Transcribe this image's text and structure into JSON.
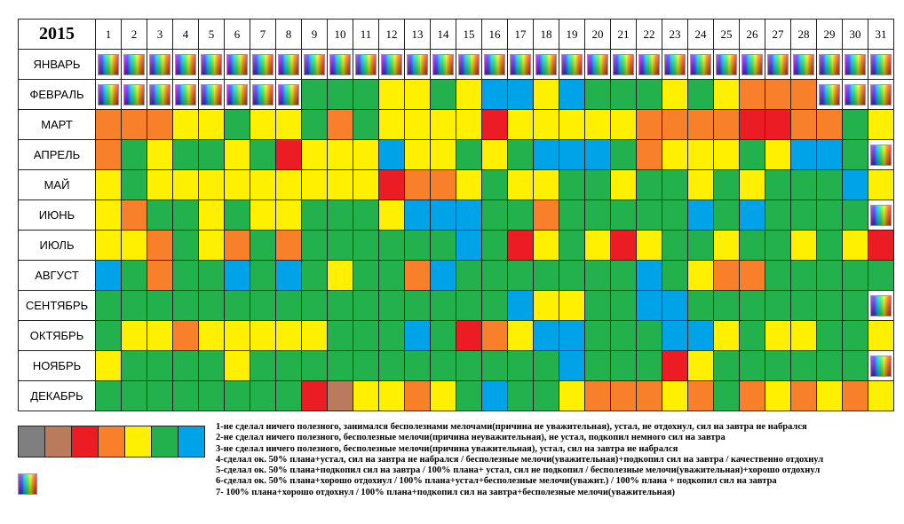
{
  "header": {
    "year": "2015",
    "days": [
      "1",
      "2",
      "3",
      "4",
      "5",
      "6",
      "7",
      "8",
      "9",
      "10",
      "11",
      "12",
      "13",
      "14",
      "15",
      "16",
      "17",
      "18",
      "19",
      "20",
      "21",
      "22",
      "23",
      "24",
      "25",
      "26",
      "27",
      "28",
      "29",
      "30",
      "31"
    ]
  },
  "rows": [
    {
      "month": "ЯНВАРЬ",
      "cells": [
        8,
        8,
        8,
        8,
        8,
        8,
        8,
        8,
        8,
        8,
        8,
        8,
        8,
        8,
        8,
        8,
        8,
        8,
        8,
        8,
        8,
        8,
        8,
        8,
        8,
        8,
        8,
        8,
        8,
        8,
        8
      ]
    },
    {
      "month": "ФЕВРАЛЬ",
      "cells": [
        8,
        8,
        8,
        8,
        8,
        8,
        8,
        8,
        6,
        6,
        6,
        5,
        5,
        6,
        5,
        7,
        7,
        5,
        7,
        6,
        6,
        6,
        5,
        6,
        5,
        4,
        4,
        4,
        8,
        8,
        8
      ]
    },
    {
      "month": "МАРТ",
      "cells": [
        4,
        4,
        4,
        5,
        5,
        6,
        5,
        5,
        6,
        4,
        6,
        5,
        5,
        5,
        5,
        3,
        5,
        5,
        5,
        5,
        5,
        4,
        4,
        4,
        4,
        3,
        3,
        4,
        4,
        6,
        5
      ]
    },
    {
      "month": "АПРЕЛЬ",
      "cells": [
        4,
        6,
        5,
        6,
        6,
        5,
        6,
        3,
        5,
        5,
        5,
        7,
        5,
        5,
        6,
        5,
        6,
        7,
        7,
        7,
        6,
        4,
        5,
        5,
        5,
        6,
        5,
        7,
        7,
        6,
        8
      ]
    },
    {
      "month": "МАЙ",
      "cells": [
        5,
        6,
        5,
        5,
        5,
        5,
        5,
        5,
        5,
        5,
        5,
        3,
        4,
        4,
        5,
        6,
        5,
        5,
        6,
        6,
        5,
        6,
        6,
        5,
        6,
        5,
        6,
        6,
        6,
        7,
        5
      ]
    },
    {
      "month": "ИЮНЬ",
      "cells": [
        5,
        4,
        6,
        6,
        5,
        6,
        5,
        5,
        6,
        6,
        6,
        5,
        7,
        7,
        7,
        6,
        6,
        4,
        6,
        6,
        6,
        6,
        6,
        7,
        6,
        7,
        6,
        6,
        6,
        6,
        8
      ]
    },
    {
      "month": "ИЮЛЬ",
      "cells": [
        5,
        5,
        4,
        6,
        5,
        4,
        6,
        4,
        6,
        6,
        6,
        6,
        6,
        6,
        7,
        6,
        3,
        5,
        6,
        5,
        3,
        5,
        6,
        6,
        5,
        6,
        6,
        5,
        6,
        5,
        3
      ]
    },
    {
      "month": "АВГУСТ",
      "cells": [
        7,
        6,
        4,
        6,
        6,
        7,
        6,
        7,
        6,
        5,
        6,
        6,
        4,
        7,
        6,
        6,
        6,
        6,
        6,
        6,
        6,
        7,
        6,
        5,
        4,
        4,
        6,
        6,
        6,
        6,
        6
      ]
    },
    {
      "month": "СЕНТЯБРЬ",
      "cells": [
        6,
        6,
        6,
        6,
        6,
        6,
        6,
        6,
        6,
        6,
        6,
        6,
        6,
        6,
        6,
        6,
        7,
        5,
        5,
        6,
        6,
        7,
        7,
        6,
        6,
        6,
        6,
        6,
        6,
        6,
        8
      ]
    },
    {
      "month": "ОКТЯБРЬ",
      "cells": [
        6,
        5,
        5,
        4,
        5,
        5,
        5,
        5,
        5,
        6,
        6,
        6,
        7,
        6,
        3,
        4,
        5,
        7,
        7,
        6,
        6,
        6,
        7,
        7,
        5,
        6,
        5,
        5,
        6,
        6,
        5
      ]
    },
    {
      "month": "НОЯБРЬ",
      "cells": [
        5,
        6,
        6,
        6,
        6,
        5,
        6,
        6,
        6,
        6,
        6,
        6,
        6,
        6,
        6,
        6,
        6,
        6,
        7,
        6,
        6,
        6,
        3,
        5,
        6,
        6,
        6,
        6,
        6,
        6,
        8
      ]
    },
    {
      "month": "ДЕКАБРЬ",
      "cells": [
        6,
        6,
        6,
        6,
        6,
        6,
        6,
        6,
        3,
        2,
        5,
        5,
        4,
        5,
        6,
        7,
        6,
        6,
        5,
        4,
        4,
        4,
        5,
        4,
        6,
        4,
        5,
        4,
        5,
        4,
        5
      ]
    }
  ],
  "legend": {
    "swatch_codes": [
      1,
      2,
      3,
      4,
      5,
      6,
      7
    ],
    "colors": {
      "1": "#7f7f7f",
      "2": "#b97b5b",
      "3": "#ec1c24",
      "4": "#f8802b",
      "5": "#fef000",
      "6": "#22b14c",
      "7": "#00a2e8"
    },
    "special_icon": "rainbow-gradient-swatch",
    "items": [
      "1-не сделал ничего полезного, занимался бесполезнами мелочами(причина не уважительная), устал, не отдохнул, сил на завтра не набрался",
      "2-не сделал ничего полезного, бесполезные мелочи(причина неуважительная), не устал, подкопил немного сил на завтра",
      "3-не сделал ничего полезного, бесполезные мелочи(причина уважительная), устал, сил на завтра не набрался",
      "4-сделал ок. 50% плана+устал, сил на завтра не набрался / бесполезные мелочи(уважительная)+подкопил сил на завтра / качественно отдохнул",
      "5-сделал ок. 50% плана+подкопил сил на завтра / 100% плана+ устал, сил не подкопил / бесполезные мелочи(уважительная)+хорошо отдохнул",
      "6-сделал ок. 50% плана+хорошо отдохнул / 100% плана+устал+бесполезные мелочи(уважит.) / 100% плана + подкопил сил на завтра",
      "7- 100% плана+хорошо отдохнул / 100% плана+подкопил сил на завтра+бесполезные мелочи(уважительная)"
    ]
  }
}
